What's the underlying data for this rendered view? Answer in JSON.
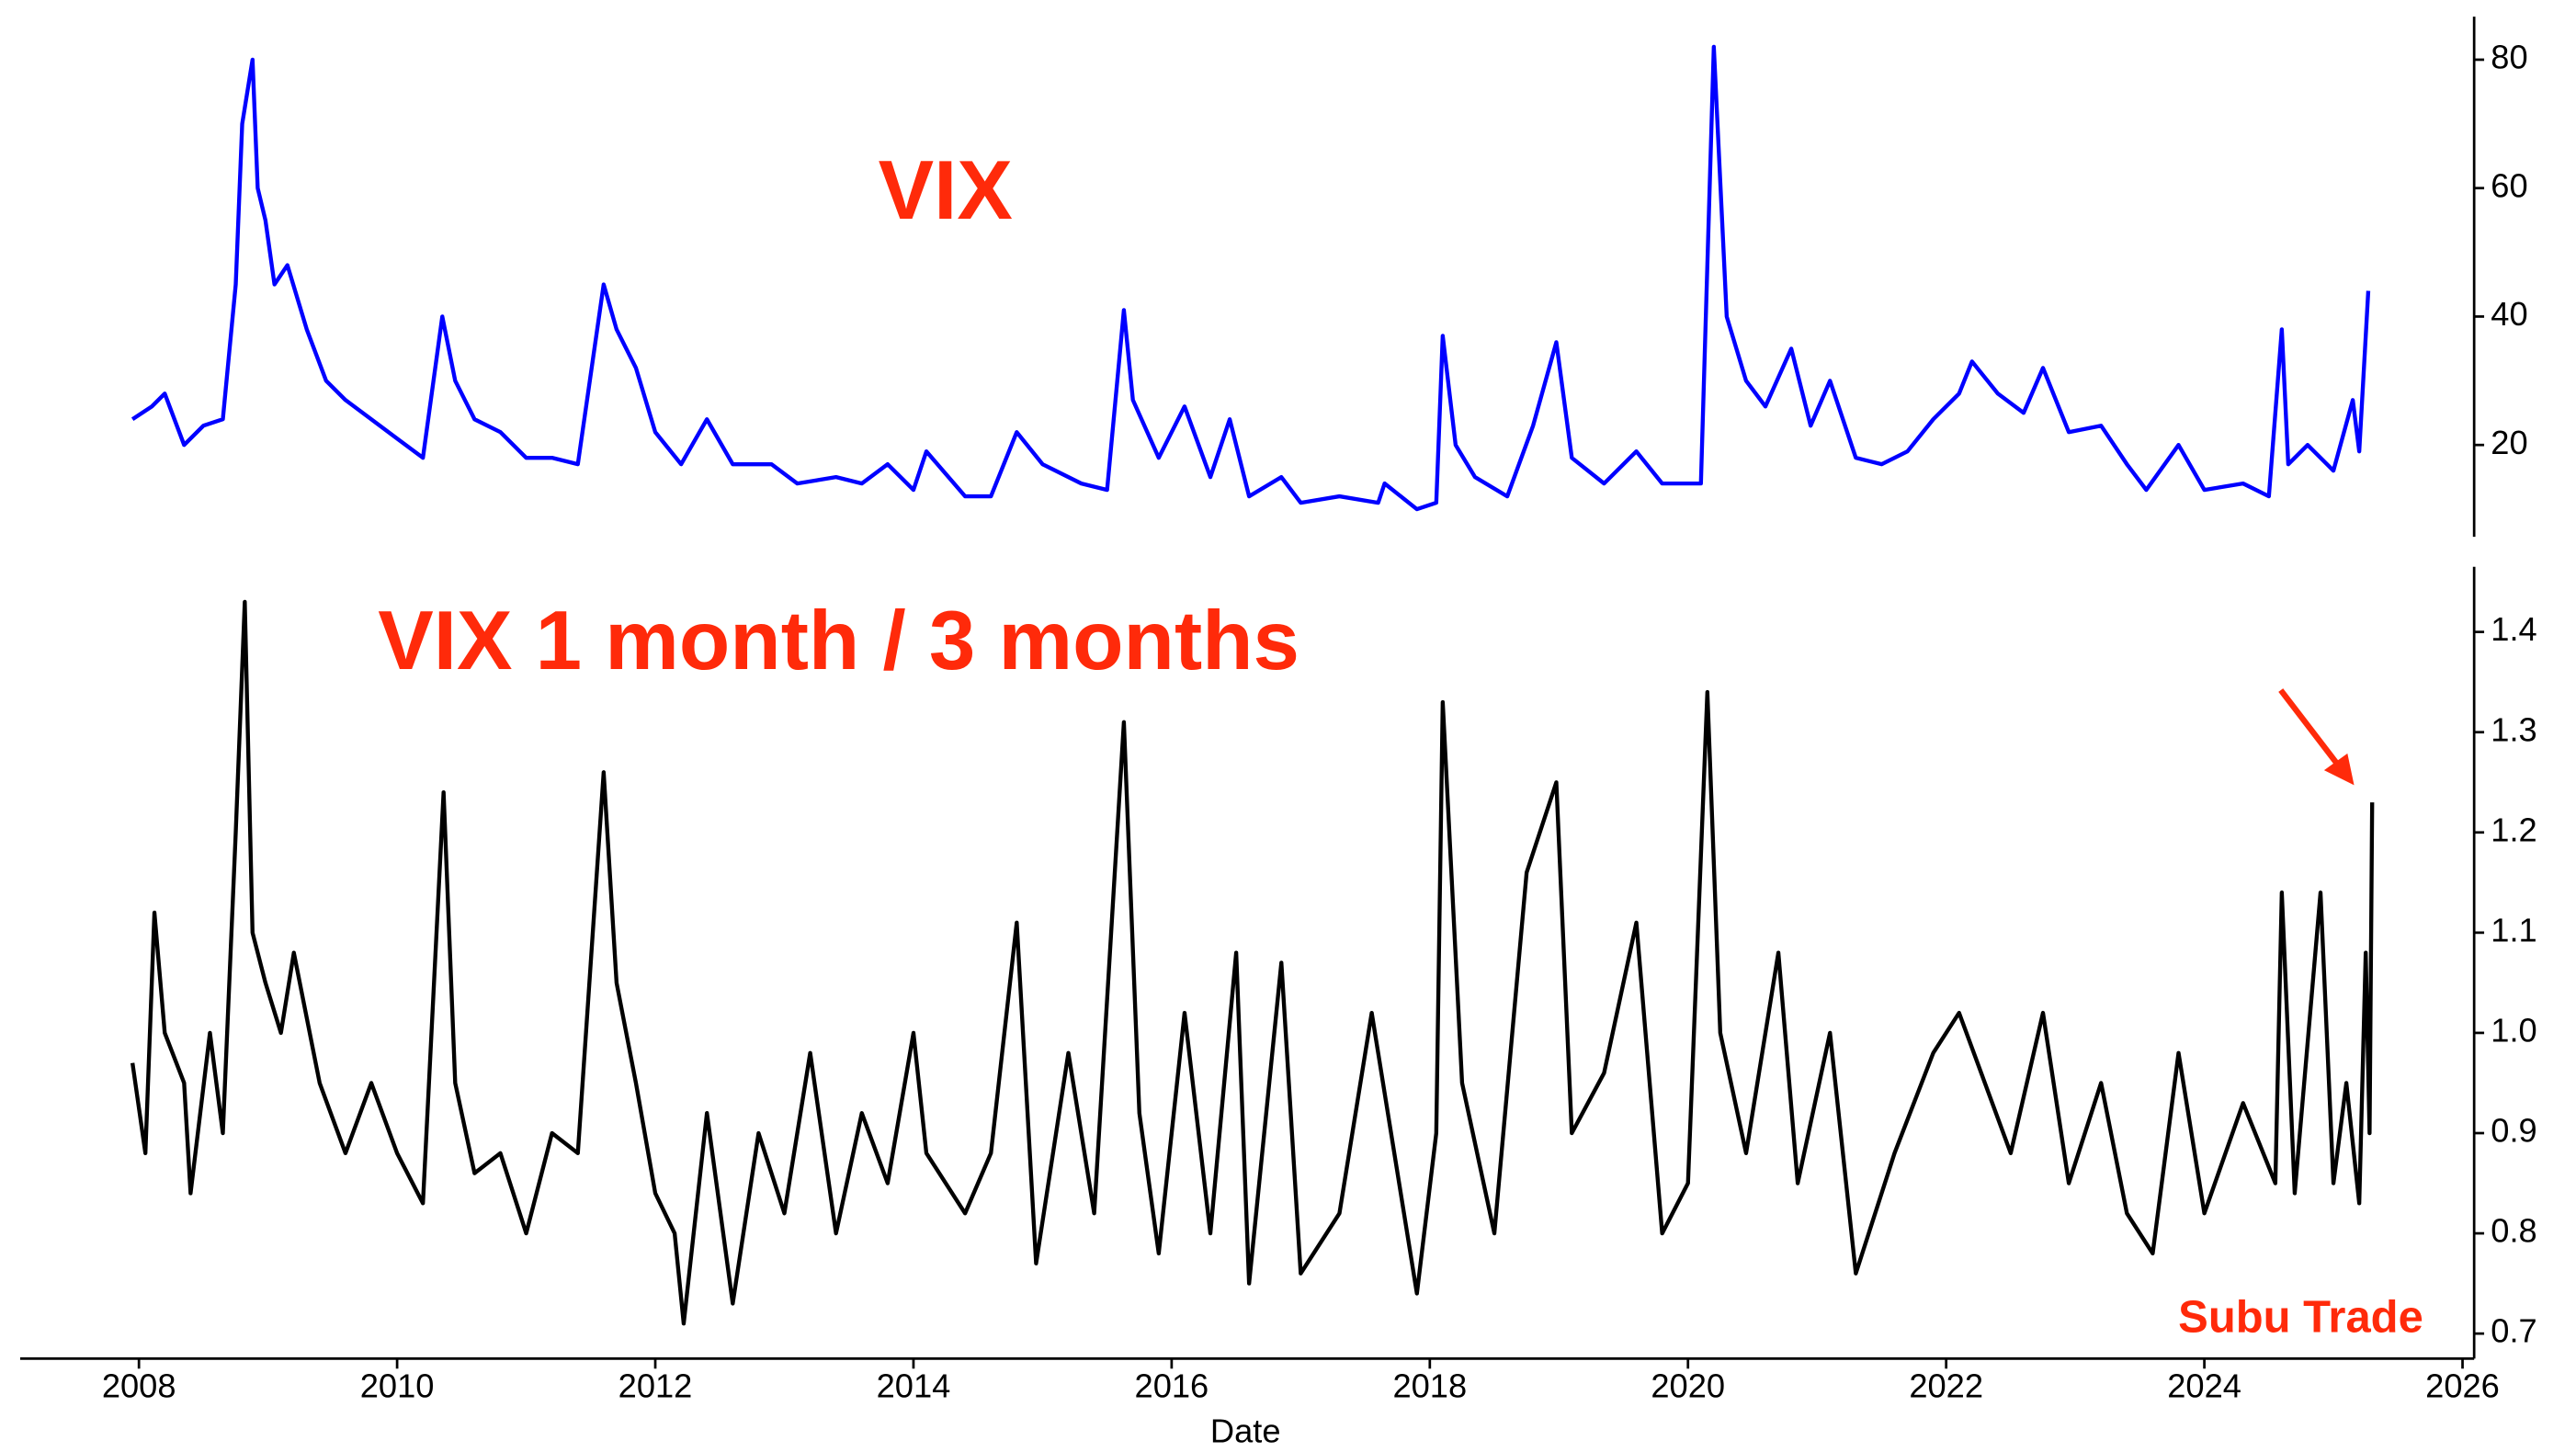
{
  "chart_data": [
    {
      "type": "line",
      "title": "VIX",
      "x": [
        2007.95,
        2008.1,
        2008.2,
        2008.35,
        2008.5,
        2008.65,
        2008.75,
        2008.8,
        2008.88,
        2008.92,
        2008.98,
        2009.05,
        2009.15,
        2009.3,
        2009.45,
        2009.6,
        2009.8,
        2010.0,
        2010.2,
        2010.35,
        2010.45,
        2010.6,
        2010.8,
        2011.0,
        2011.2,
        2011.4,
        2011.6,
        2011.7,
        2011.85,
        2012.0,
        2012.2,
        2012.4,
        2012.6,
        2012.9,
        2013.1,
        2013.4,
        2013.6,
        2013.8,
        2014.0,
        2014.1,
        2014.4,
        2014.6,
        2014.8,
        2015.0,
        2015.3,
        2015.5,
        2015.63,
        2015.7,
        2015.9,
        2016.1,
        2016.3,
        2016.45,
        2016.6,
        2016.85,
        2017.0,
        2017.3,
        2017.6,
        2017.65,
        2017.9,
        2018.05,
        2018.1,
        2018.2,
        2018.35,
        2018.6,
        2018.8,
        2018.98,
        2019.1,
        2019.35,
        2019.6,
        2019.8,
        2020.1,
        2020.2,
        2020.3,
        2020.45,
        2020.6,
        2020.8,
        2020.95,
        2021.1,
        2021.3,
        2021.5,
        2021.7,
        2021.9,
        2022.1,
        2022.2,
        2022.4,
        2022.6,
        2022.75,
        2022.95,
        2023.2,
        2023.4,
        2023.55,
        2023.8,
        2024.0,
        2024.3,
        2024.5,
        2024.6,
        2024.65,
        2024.8,
        2025.0,
        2025.15,
        2025.2,
        2025.27
      ],
      "series": [
        {
          "color": "#0000ff",
          "values": [
            24,
            26,
            28,
            20,
            23,
            24,
            45,
            70,
            80,
            60,
            55,
            45,
            48,
            38,
            30,
            27,
            24,
            21,
            18,
            40,
            30,
            24,
            22,
            18,
            18,
            17,
            45,
            38,
            32,
            22,
            17,
            24,
            17,
            17,
            14,
            15,
            14,
            17,
            13,
            19,
            12,
            12,
            22,
            17,
            14,
            13,
            41,
            27,
            18,
            26,
            15,
            24,
            12,
            15,
            11,
            12,
            11,
            14,
            10,
            11,
            37,
            20,
            15,
            12,
            23,
            36,
            18,
            14,
            19,
            14,
            14,
            82,
            40,
            30,
            26,
            35,
            23,
            30,
            18,
            17,
            19,
            24,
            28,
            33,
            28,
            25,
            32,
            22,
            23,
            17,
            13,
            20,
            13,
            14,
            12,
            38,
            17,
            20,
            16,
            27,
            19,
            44
          ]
        }
      ],
      "xlim": [
        2007.08,
        2026.09
      ],
      "ylim": [
        5.7,
        86.7
      ],
      "yticks": [
        20,
        40,
        60,
        80
      ]
    },
    {
      "type": "line",
      "title": "VIX 1 month / 3 months",
      "x": [
        2007.95,
        2008.05,
        2008.12,
        2008.2,
        2008.35,
        2008.4,
        2008.55,
        2008.65,
        2008.75,
        2008.82,
        2008.88,
        2008.98,
        2009.1,
        2009.2,
        2009.4,
        2009.6,
        2009.8,
        2010.0,
        2010.2,
        2010.36,
        2010.45,
        2010.6,
        2010.8,
        2011.0,
        2011.2,
        2011.4,
        2011.6,
        2011.7,
        2011.85,
        2012.0,
        2012.15,
        2012.22,
        2012.4,
        2012.6,
        2012.8,
        2013.0,
        2013.2,
        2013.4,
        2013.6,
        2013.8,
        2014.0,
        2014.1,
        2014.4,
        2014.6,
        2014.8,
        2014.95,
        2015.2,
        2015.4,
        2015.63,
        2015.75,
        2015.9,
        2016.1,
        2016.3,
        2016.5,
        2016.6,
        2016.85,
        2017.0,
        2017.3,
        2017.55,
        2017.9,
        2018.05,
        2018.1,
        2018.25,
        2018.5,
        2018.75,
        2018.98,
        2019.1,
        2019.35,
        2019.6,
        2019.8,
        2020.0,
        2020.15,
        2020.25,
        2020.45,
        2020.7,
        2020.85,
        2021.1,
        2021.3,
        2021.6,
        2021.9,
        2022.1,
        2022.3,
        2022.5,
        2022.75,
        2022.95,
        2023.2,
        2023.4,
        2023.6,
        2023.8,
        2024.0,
        2024.3,
        2024.55,
        2024.6,
        2024.7,
        2024.9,
        2025.0,
        2025.1,
        2025.2,
        2025.25,
        2025.28,
        2025.3
      ],
      "series": [
        {
          "color": "#000000",
          "values": [
            0.97,
            0.88,
            1.12,
            1.0,
            0.95,
            0.84,
            1.0,
            0.9,
            1.2,
            1.43,
            1.1,
            1.05,
            1.0,
            1.08,
            0.95,
            0.88,
            0.95,
            0.88,
            0.83,
            1.24,
            0.95,
            0.86,
            0.88,
            0.8,
            0.9,
            0.88,
            1.26,
            1.05,
            0.95,
            0.84,
            0.8,
            0.71,
            0.92,
            0.73,
            0.9,
            0.82,
            0.98,
            0.8,
            0.92,
            0.85,
            1.0,
            0.88,
            0.82,
            0.88,
            1.11,
            0.77,
            0.98,
            0.82,
            1.31,
            0.92,
            0.78,
            1.02,
            0.8,
            1.08,
            0.75,
            1.07,
            0.76,
            0.82,
            1.02,
            0.74,
            0.9,
            1.33,
            0.95,
            0.8,
            1.16,
            1.25,
            0.9,
            0.96,
            1.11,
            0.8,
            0.85,
            1.34,
            1.0,
            0.88,
            1.08,
            0.85,
            1.0,
            0.76,
            0.88,
            0.98,
            1.02,
            0.95,
            0.88,
            1.02,
            0.85,
            0.95,
            0.82,
            0.78,
            0.98,
            0.82,
            0.93,
            0.85,
            1.14,
            0.84,
            1.14,
            0.85,
            0.95,
            0.83,
            1.08,
            0.9,
            1.23
          ]
        }
      ],
      "xlim": [
        2007.08,
        2026.09
      ],
      "xticks": [
        2008,
        2010,
        2012,
        2014,
        2016,
        2018,
        2020,
        2022,
        2024,
        2026
      ],
      "xlabel": "Date",
      "ylim": [
        0.675,
        1.465
      ],
      "yticks": [
        0.7,
        0.8,
        0.9,
        {
          "value": 1,
          "label": "1.0"
        },
        1.1,
        1.2,
        1.3,
        1.4
      ],
      "annotations": [
        "Subu Trade"
      ]
    }
  ]
}
